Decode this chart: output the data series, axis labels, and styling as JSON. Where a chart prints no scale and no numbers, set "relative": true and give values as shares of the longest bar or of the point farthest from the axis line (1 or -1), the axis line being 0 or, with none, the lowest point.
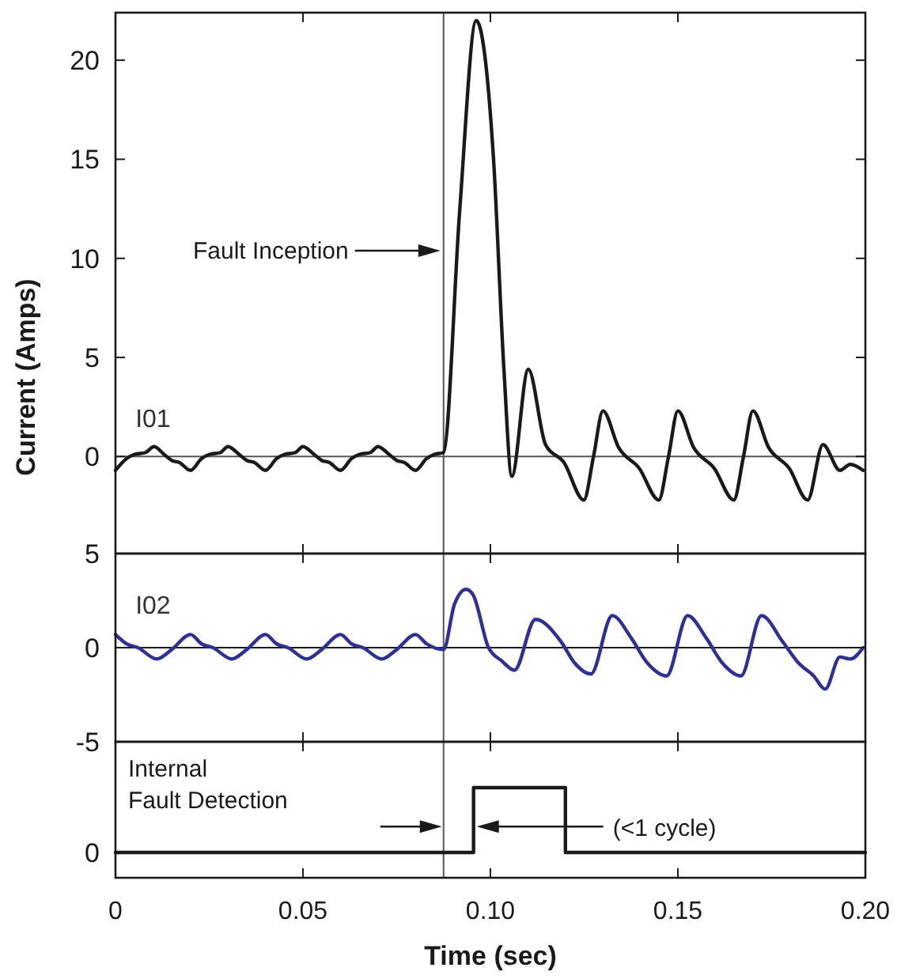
{
  "chart_data": [
    {
      "type": "line",
      "ylabel": "Current (Amps)",
      "xlim": [
        0,
        0.2
      ],
      "ylim": [
        -4.9,
        22.4
      ],
      "tick_labels": "y",
      "xticks": [
        0.05,
        0.1,
        0.15
      ],
      "yticks": [
        0,
        5,
        10,
        15,
        20
      ],
      "ref_lines": [
        {
          "axis": "x",
          "value": 0.0875,
          "color": "#555555"
        },
        {
          "axis": "y",
          "value": 0,
          "color": "#555555"
        }
      ],
      "annotations": [
        "Fault Inception"
      ],
      "series": [
        {
          "name": "I01",
          "color": "#1a1a1a",
          "x": [
            0,
            0.003,
            0.005,
            0.008,
            0.0103,
            0.013,
            0.015,
            0.017,
            0.02,
            0.023,
            0.025,
            0.028,
            0.03,
            0.033,
            0.035,
            0.037,
            0.04,
            0.043,
            0.045,
            0.048,
            0.05,
            0.053,
            0.055,
            0.057,
            0.06,
            0.063,
            0.065,
            0.068,
            0.07,
            0.073,
            0.075,
            0.077,
            0.08,
            0.083,
            0.085,
            0.0875,
            0.0918,
            0.0962,
            0.1008,
            0.1036,
            0.1057,
            0.1101,
            0.1147,
            0.1196,
            0.1249,
            0.1275,
            0.13,
            0.1342,
            0.1397,
            0.1449,
            0.1475,
            0.15,
            0.1542,
            0.1597,
            0.1649,
            0.1675,
            0.17,
            0.1742,
            0.1797,
            0.1846,
            0.1887,
            0.1932,
            0.196,
            0.1994
          ],
          "values": [
            -0.7,
            -0.1,
            0.1,
            0.2,
            0.5,
            0.1,
            -0.2,
            -0.3,
            -0.7,
            -0.1,
            0.1,
            0.2,
            0.5,
            0.1,
            -0.2,
            -0.3,
            -0.7,
            -0.1,
            0.1,
            0.2,
            0.5,
            0.1,
            -0.2,
            -0.3,
            -0.7,
            -0.1,
            0.1,
            0.2,
            0.5,
            0.1,
            -0.2,
            -0.3,
            -0.7,
            -0.1,
            0.1,
            0.2,
            12.4,
            22.0,
            15.1,
            4.4,
            -1.0,
            4.4,
            0.6,
            -0.3,
            -2.2,
            0.0,
            2.3,
            0.45,
            -0.6,
            -2.2,
            0.0,
            2.3,
            0.45,
            -0.6,
            -2.2,
            0.0,
            2.3,
            0.45,
            -0.6,
            -2.2,
            0.6,
            -0.7,
            -0.4,
            -0.7
          ]
        }
      ]
    },
    {
      "type": "line",
      "xlim": [
        0,
        0.2
      ],
      "ylim": [
        -5,
        5
      ],
      "tick_labels": "y",
      "xticks": [
        0.05,
        0.1,
        0.15
      ],
      "yticks": [
        -5,
        0,
        5
      ],
      "ref_lines": [
        {
          "axis": "x",
          "value": 0.0875,
          "color": "#555555"
        },
        {
          "axis": "y",
          "value": 0,
          "color": "#1a1a1a"
        }
      ],
      "series": [
        {
          "name": "I02",
          "color": "#2e3192",
          "x": [
            0,
            0.003,
            0.006,
            0.011,
            0.015,
            0.02,
            0.023,
            0.026,
            0.031,
            0.035,
            0.04,
            0.043,
            0.046,
            0.051,
            0.055,
            0.06,
            0.063,
            0.066,
            0.071,
            0.075,
            0.08,
            0.083,
            0.0875,
            0.0904,
            0.0935,
            0.0954,
            0.0995,
            0.103,
            0.1064,
            0.112,
            0.1189,
            0.1224,
            0.1268,
            0.1325,
            0.1376,
            0.1418,
            0.147,
            0.1526,
            0.1576,
            0.1618,
            0.1668,
            0.1723,
            0.178,
            0.1821,
            0.1862,
            0.1893,
            0.1932,
            0.196,
            0.1994
          ],
          "values": [
            0.7,
            0.2,
            0.0,
            -0.6,
            -0.1,
            0.7,
            0.2,
            0.0,
            -0.6,
            -0.1,
            0.7,
            0.2,
            0.0,
            -0.6,
            -0.1,
            0.7,
            0.2,
            0.0,
            -0.6,
            -0.1,
            0.7,
            0.2,
            -0.1,
            2.3,
            3.1,
            2.8,
            0.0,
            -0.7,
            -1.2,
            1.5,
            0.3,
            -0.8,
            -1.4,
            1.7,
            0.5,
            -0.8,
            -1.5,
            1.7,
            0.5,
            -0.8,
            -1.5,
            1.7,
            0.3,
            -0.8,
            -1.5,
            -2.2,
            -0.5,
            -0.6,
            0.0
          ]
        }
      ]
    },
    {
      "type": "step",
      "relative": true,
      "xlabel": "Time (sec)",
      "xlim": [
        0,
        0.2
      ],
      "xticks": [
        0,
        0.05,
        {
          "value": 0.1,
          "label": "0.10"
        },
        0.15,
        {
          "value": 0.2,
          "label": "0.20"
        }
      ],
      "ref_lines": [
        {
          "axis": "x",
          "value": 0.0875,
          "color": "#555555"
        }
      ],
      "annotations": [
        "0",
        "Internal\nFault Detection",
        "(<1 cycle)"
      ],
      "series": [
        {
          "color": "#1a1a1a",
          "x": [
            0,
            0.0955,
            0.12,
            0.2
          ],
          "values": [
            0,
            1,
            0,
            0
          ]
        }
      ]
    }
  ]
}
